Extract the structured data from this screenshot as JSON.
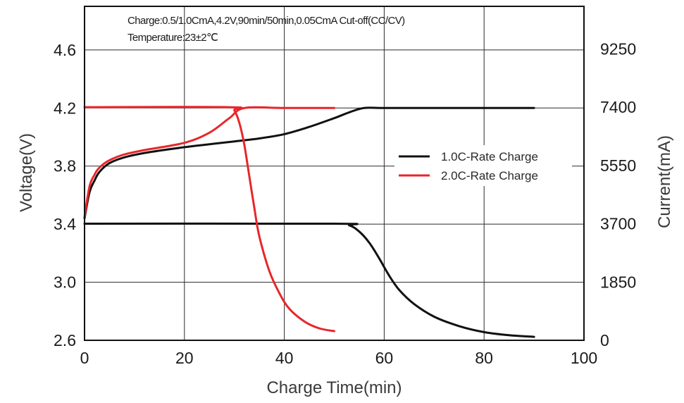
{
  "chart_data": {
    "type": "line",
    "annotations": [
      "Charge:0.5/1.0CmA,4.2V,90min/50min,0.05CmA Cut-off(CC/CV)",
      "Temperature:23±2℃"
    ],
    "xlabel": "Charge Time(min)",
    "ylabel_left": "Voltage(V)",
    "ylabel_right": "Current(mA)",
    "x_ticks": [
      "0",
      "20",
      "40",
      "60",
      "80",
      "100"
    ],
    "y_left_ticks": [
      "2.6",
      "3.0",
      "3.4",
      "3.8",
      "4.2",
      "4.6"
    ],
    "y_right_ticks": [
      "0",
      "1850",
      "3700",
      "5550",
      "7400",
      "9250"
    ],
    "xlim": [
      0,
      100
    ],
    "ylim_left": [
      2.6,
      4.9
    ],
    "ylim_right": [
      0,
      10600
    ],
    "grid": true,
    "legend_position": "center-right",
    "series": [
      {
        "name": "1.0C-Rate Charge",
        "color": "#111111",
        "voltage": [
          [
            0,
            3.44
          ],
          [
            1,
            3.62
          ],
          [
            2,
            3.7
          ],
          [
            3,
            3.76
          ],
          [
            5,
            3.82
          ],
          [
            8,
            3.86
          ],
          [
            12,
            3.89
          ],
          [
            20,
            3.93
          ],
          [
            30,
            3.97
          ],
          [
            35,
            3.99
          ],
          [
            40,
            4.02
          ],
          [
            45,
            4.07
          ],
          [
            50,
            4.13
          ],
          [
            53,
            4.17
          ],
          [
            56,
            4.2
          ],
          [
            60,
            4.2
          ],
          [
            70,
            4.2
          ],
          [
            80,
            4.2
          ],
          [
            90,
            4.2
          ]
        ],
        "current": [
          [
            0,
            3700
          ],
          [
            50,
            3700
          ],
          [
            53,
            3650
          ],
          [
            55,
            3450
          ],
          [
            57,
            3100
          ],
          [
            59,
            2600
          ],
          [
            61,
            2050
          ],
          [
            63,
            1600
          ],
          [
            66,
            1150
          ],
          [
            70,
            750
          ],
          [
            75,
            450
          ],
          [
            80,
            260
          ],
          [
            85,
            160
          ],
          [
            90,
            110
          ]
        ]
      },
      {
        "name": "2.0C-Rate Charge",
        "color": "#e8262a",
        "voltage": [
          [
            0,
            3.45
          ],
          [
            1,
            3.66
          ],
          [
            2,
            3.74
          ],
          [
            3,
            3.79
          ],
          [
            5,
            3.84
          ],
          [
            8,
            3.88
          ],
          [
            12,
            3.91
          ],
          [
            20,
            3.96
          ],
          [
            25,
            4.03
          ],
          [
            29,
            4.13
          ],
          [
            32,
            4.2
          ],
          [
            40,
            4.2
          ],
          [
            50,
            4.2
          ]
        ],
        "current": [
          [
            0,
            7400
          ],
          [
            29,
            7400
          ],
          [
            30,
            7300
          ],
          [
            31,
            6900
          ],
          [
            32,
            6200
          ],
          [
            33,
            5200
          ],
          [
            34,
            4200
          ],
          [
            35,
            3300
          ],
          [
            37,
            2200
          ],
          [
            39,
            1500
          ],
          [
            41,
            1000
          ],
          [
            44,
            600
          ],
          [
            47,
            380
          ],
          [
            50,
            290
          ]
        ]
      }
    ]
  }
}
